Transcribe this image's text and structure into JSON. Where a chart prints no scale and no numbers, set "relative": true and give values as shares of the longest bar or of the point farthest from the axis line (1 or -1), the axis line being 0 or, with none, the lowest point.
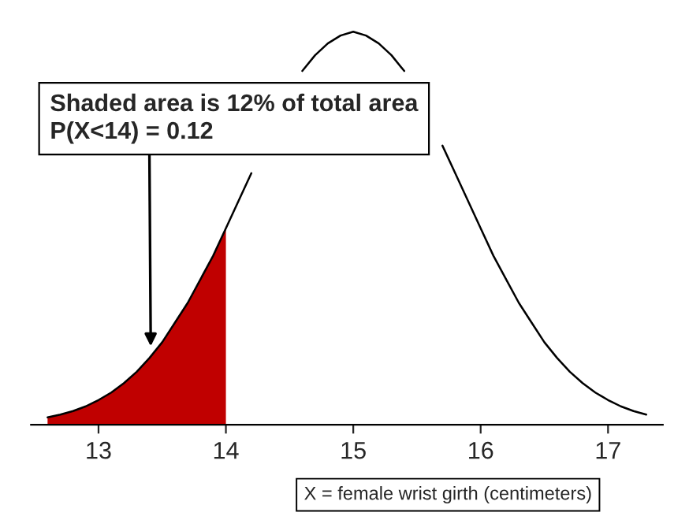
{
  "chart_data": {
    "type": "line",
    "relative": true,
    "xlabel": "X = female wrist girth (centimeters)",
    "xlim": [
      12.47,
      17.43
    ],
    "xticks": [
      13,
      14,
      15,
      16,
      17
    ],
    "grid": false,
    "legend": false,
    "tick_labels": "x",
    "series": [
      {
        "color": "#000000",
        "x": [
          12.6,
          12.7,
          12.8,
          12.9,
          13.0,
          13.1,
          13.2,
          13.3,
          13.4,
          13.5,
          13.6,
          13.7,
          13.8,
          13.9,
          14.0,
          14.1,
          14.2,
          14.3,
          14.4,
          14.5,
          14.6,
          14.7,
          14.8,
          14.9,
          15.0,
          15.1,
          15.2,
          15.3,
          15.4,
          15.5,
          15.6,
          15.7,
          15.8,
          15.9,
          16.0,
          16.1,
          16.2,
          16.3,
          16.4,
          16.5,
          16.6,
          16.7,
          16.8,
          16.9,
          17.0,
          17.1,
          17.2,
          17.3
        ],
        "values": [
          0.019,
          0.026,
          0.035,
          0.047,
          0.063,
          0.082,
          0.106,
          0.135,
          0.17,
          0.21,
          0.26,
          0.31,
          0.37,
          0.43,
          0.5,
          0.57,
          0.64,
          null,
          null,
          null,
          0.9,
          0.94,
          0.97,
          0.99,
          1.0,
          0.99,
          0.97,
          0.94,
          0.9,
          null,
          null,
          0.71,
          0.64,
          0.57,
          0.5,
          0.43,
          0.37,
          0.31,
          0.26,
          0.21,
          0.17,
          0.135,
          0.106,
          0.082,
          0.063,
          0.047,
          0.035,
          0.026
        ]
      },
      {
        "type": "area",
        "color": "#c00000",
        "x": [
          12.6,
          12.7,
          12.8,
          12.9,
          13.0,
          13.1,
          13.2,
          13.3,
          13.4,
          13.5,
          13.6,
          13.7,
          13.8,
          13.9,
          14.0
        ],
        "values": [
          0.019,
          0.026,
          0.035,
          0.047,
          0.063,
          0.082,
          0.106,
          0.135,
          0.17,
          0.21,
          0.26,
          0.31,
          0.37,
          0.43,
          0.5
        ]
      }
    ],
    "annotations": [
      {
        "text": "Shaded area is 12% of total area\nP(X<14) = 0.12",
        "x": 13.41,
        "y": 0.2
      }
    ]
  }
}
